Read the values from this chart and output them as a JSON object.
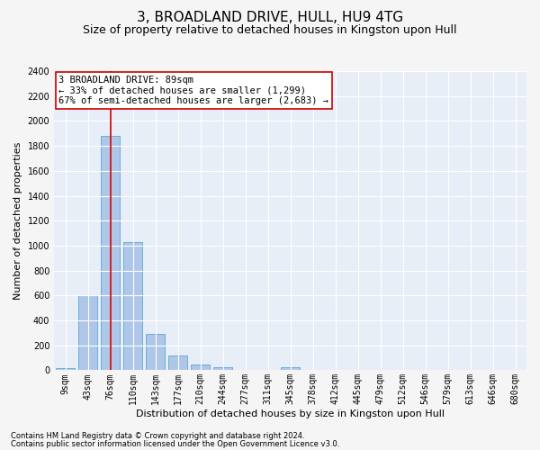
{
  "title": "3, BROADLAND DRIVE, HULL, HU9 4TG",
  "subtitle": "Size of property relative to detached houses in Kingston upon Hull",
  "xlabel": "Distribution of detached houses by size in Kingston upon Hull",
  "ylabel": "Number of detached properties",
  "footnote1": "Contains HM Land Registry data © Crown copyright and database right 2024.",
  "footnote2": "Contains public sector information licensed under the Open Government Licence v3.0.",
  "bar_labels": [
    "9sqm",
    "43sqm",
    "76sqm",
    "110sqm",
    "143sqm",
    "177sqm",
    "210sqm",
    "244sqm",
    "277sqm",
    "311sqm",
    "345sqm",
    "378sqm",
    "412sqm",
    "445sqm",
    "479sqm",
    "512sqm",
    "546sqm",
    "579sqm",
    "613sqm",
    "646sqm",
    "680sqm"
  ],
  "bar_values": [
    20,
    600,
    1880,
    1030,
    290,
    115,
    45,
    25,
    0,
    0,
    25,
    0,
    0,
    0,
    0,
    0,
    0,
    0,
    0,
    0,
    0
  ],
  "bar_color": "#aec6e8",
  "bar_edgecolor": "#6baed6",
  "ylim": [
    0,
    2400
  ],
  "yticks": [
    0,
    200,
    400,
    600,
    800,
    1000,
    1200,
    1400,
    1600,
    1800,
    2000,
    2200,
    2400
  ],
  "vline_x": 2,
  "vline_color": "#cc0000",
  "annotation_text": "3 BROADLAND DRIVE: 89sqm\n← 33% of detached houses are smaller (1,299)\n67% of semi-detached houses are larger (2,683) →",
  "annotation_box_color": "#ffffff",
  "annotation_box_edgecolor": "#cc0000",
  "fig_background_color": "#f5f5f5",
  "axes_background_color": "#e8eef7",
  "grid_color": "#ffffff",
  "title_fontsize": 11,
  "subtitle_fontsize": 9,
  "annotation_fontsize": 7.5,
  "ylabel_fontsize": 8,
  "xlabel_fontsize": 8,
  "tick_fontsize": 7,
  "footnote_fontsize": 6
}
